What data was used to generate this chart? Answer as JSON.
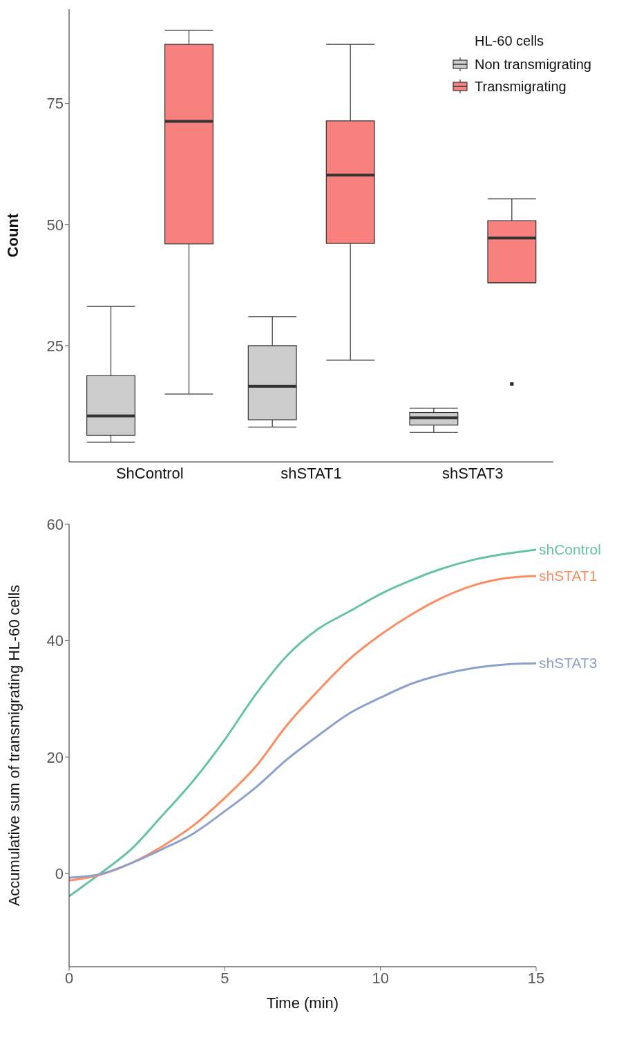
{
  "chart_data": [
    {
      "type": "box",
      "categories": [
        "ShControl",
        "shSTAT1",
        "shSTAT3"
      ],
      "ylabel": "Count",
      "ylim": [
        1,
        94.5
      ],
      "yticks": [
        25,
        50,
        75
      ],
      "grid": false,
      "legend": "top right",
      "legend_title": "HL-60 cells",
      "series": [
        {
          "name": "Non transmigrating",
          "color": "#cccccc",
          "boxes": [
            {
              "low": 5.1,
              "q1": 6.5,
              "median": 10.5,
              "q3": 18.8,
              "high": 33.1
            },
            {
              "low": 8.2,
              "q1": 9.7,
              "median": 16.6,
              "q3": 25,
              "high": 31
            },
            {
              "low": 7.1,
              "q1": 8.6,
              "median": 10.1,
              "q3": 11.2,
              "high": 12.1
            }
          ]
        },
        {
          "name": "Transmigrating",
          "color": "#f8807e",
          "boxes": [
            {
              "low": 15,
              "q1": 46,
              "median": 71.3,
              "q3": 87.2,
              "high": 90.1
            },
            {
              "low": 22,
              "q1": 46.1,
              "median": 60.2,
              "q3": 71.4,
              "high": 87.2
            },
            {
              "low": 38,
              "q1": 38,
              "median": 47.2,
              "q3": 50.8,
              "high": 55.3,
              "outliers": [
                17.1
              ]
            }
          ]
        }
      ]
    },
    {
      "type": "line",
      "x": [
        0,
        1,
        2,
        3,
        4,
        5,
        6,
        7,
        8,
        9,
        10,
        11,
        12,
        13,
        14,
        15
      ],
      "xlabel": "Time (min)",
      "ylabel": "Accumulative sum of transmigrating HL-60 cells",
      "xlim": [
        0,
        15
      ],
      "xticks": [
        0,
        5,
        10,
        15
      ],
      "ylim": [
        -16,
        60
      ],
      "yticks": [
        0,
        20,
        40,
        60
      ],
      "grid": false,
      "marker": "none",
      "line_style": "solid",
      "series": [
        {
          "name": "shControl",
          "color": "#66c2a5",
          "values": [
            -3.9,
            0,
            4.2,
            10,
            16,
            23,
            30.8,
            37.4,
            42,
            45,
            48,
            50.4,
            52.4,
            53.9,
            54.9,
            55.6
          ]
        },
        {
          "name": "shSTAT1",
          "color": "#fc8d62",
          "values": [
            -1.2,
            -0.2,
            1.8,
            4.7,
            8.3,
            13,
            18.4,
            25.5,
            31.4,
            36.8,
            41,
            44.5,
            47.4,
            49.5,
            50.7,
            51.1
          ]
        },
        {
          "name": "shSTAT3",
          "color": "#8da0cb",
          "values": [
            -0.7,
            -0.1,
            1.8,
            4.2,
            6.9,
            10.7,
            14.8,
            19.6,
            23.7,
            27.5,
            30.2,
            32.6,
            34.2,
            35.3,
            35.9,
            36.1
          ]
        }
      ]
    }
  ]
}
